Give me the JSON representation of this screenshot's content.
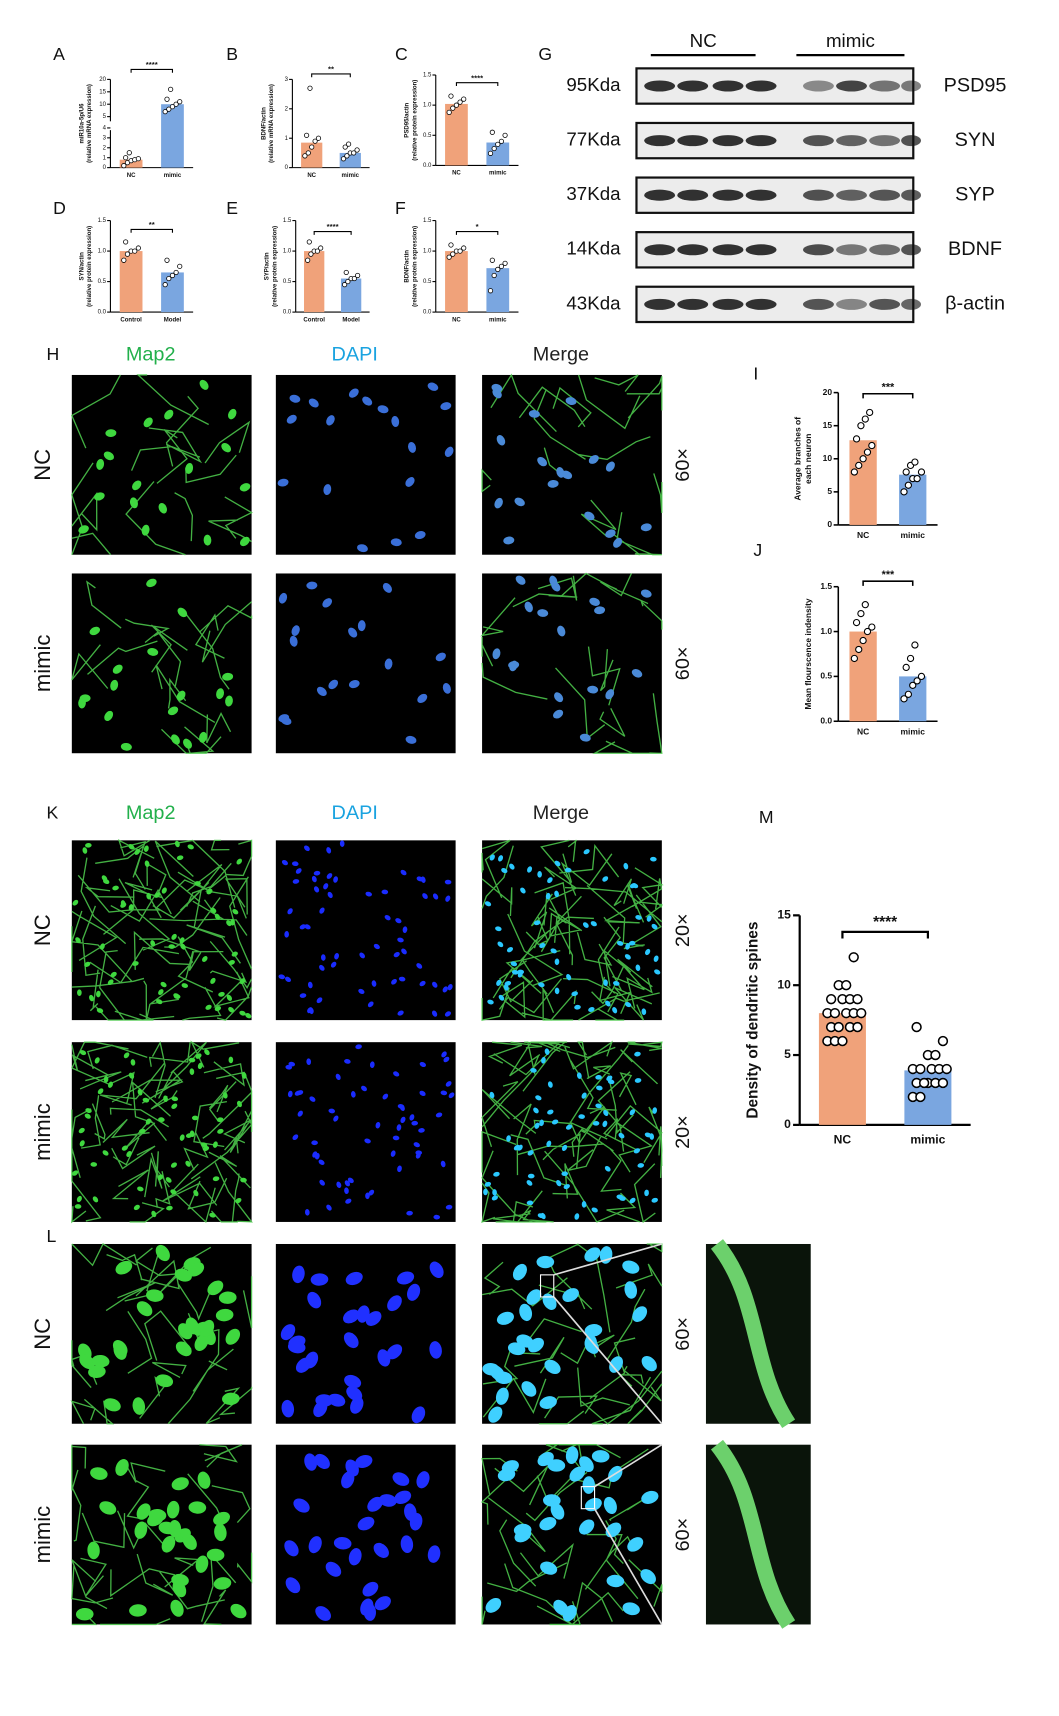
{
  "chart_data": [
    {
      "type": "bar",
      "panel": "A",
      "ylabel": [
        "miR10a-5p/U6",
        "(relative mRNA expression)"
      ],
      "categories": [
        "NC",
        "mimic"
      ],
      "values": [
        0.8,
        10
      ],
      "colors": [
        "#f0a27a",
        "#7aa6e0"
      ],
      "points": [
        [
          0.2,
          0.5,
          0.7,
          0.8,
          0.9,
          1.0,
          1.5
        ],
        [
          7,
          8,
          9,
          10,
          11,
          12,
          16
        ]
      ],
      "ylim": [
        0,
        20
      ],
      "ybreak": 4,
      "yticks": [
        0,
        1,
        2,
        3,
        4,
        5,
        10,
        15,
        20
      ],
      "significance": "****"
    },
    {
      "type": "bar",
      "panel": "B",
      "ylabel": [
        "BDNF/actin",
        "(relative mRNA expression)"
      ],
      "categories": [
        "NC",
        "mimic"
      ],
      "values": [
        0.85,
        0.5
      ],
      "colors": [
        "#f0a27a",
        "#7aa6e0"
      ],
      "points": [
        [
          0.4,
          0.5,
          0.7,
          0.9,
          1.0,
          1.1,
          2.7
        ],
        [
          0.3,
          0.4,
          0.5,
          0.5,
          0.6,
          0.7,
          0.8
        ]
      ],
      "ylim": [
        0,
        3
      ],
      "yticks": [
        0,
        1,
        2,
        3
      ],
      "significance": "**"
    },
    {
      "type": "bar",
      "panel": "C",
      "ylabel": [
        "PSD95/actin",
        "(relative protein expression)"
      ],
      "categories": [
        "NC",
        "mimic"
      ],
      "values": [
        1.02,
        0.38
      ],
      "colors": [
        "#f0a27a",
        "#7aa6e0"
      ],
      "points": [
        [
          0.88,
          0.95,
          1.0,
          1.05,
          1.1,
          1.15
        ],
        [
          0.2,
          0.28,
          0.35,
          0.4,
          0.5,
          0.55
        ]
      ],
      "ylim": [
        0,
        1.5
      ],
      "yticks": [
        {
          "value": 0,
          "label": "0.0"
        },
        0.5,
        {
          "value": 1,
          "label": "1.0"
        },
        1.5
      ],
      "significance": "****"
    },
    {
      "type": "bar",
      "panel": "D",
      "ylabel": [
        "SYN/actin",
        "(relative protein expression)"
      ],
      "categories": [
        "Control",
        "Model"
      ],
      "values": [
        1.0,
        0.65
      ],
      "colors": [
        "#f0a27a",
        "#7aa6e0"
      ],
      "points": [
        [
          0.85,
          0.95,
          1.0,
          1.0,
          1.05,
          1.15
        ],
        [
          0.45,
          0.55,
          0.6,
          0.65,
          0.75,
          0.85
        ]
      ],
      "ylim": [
        0,
        1.5
      ],
      "yticks": [
        {
          "value": 0,
          "label": "0.0"
        },
        0.5,
        {
          "value": 1,
          "label": "1.0"
        },
        1.5
      ],
      "significance": "**"
    },
    {
      "type": "bar",
      "panel": "E",
      "ylabel": [
        "SYP/actin",
        "(relative protein expression)"
      ],
      "categories": [
        "Control",
        "Model"
      ],
      "values": [
        1.0,
        0.55
      ],
      "colors": [
        "#f0a27a",
        "#7aa6e0"
      ],
      "points": [
        [
          0.85,
          0.95,
          1.0,
          1.0,
          1.05,
          1.15
        ],
        [
          0.45,
          0.5,
          0.55,
          0.55,
          0.6,
          0.65
        ]
      ],
      "ylim": [
        0,
        1.5
      ],
      "yticks": [
        {
          "value": 0,
          "label": "0.0"
        },
        0.5,
        {
          "value": 1,
          "label": "1.0"
        },
        1.5
      ],
      "significance": "****"
    },
    {
      "type": "bar",
      "panel": "F",
      "ylabel": [
        "BDNF/actin",
        "(relative protein expression)"
      ],
      "categories": [
        "NC",
        "mimic"
      ],
      "values": [
        1.0,
        0.72
      ],
      "colors": [
        "#f0a27a",
        "#7aa6e0"
      ],
      "points": [
        [
          0.9,
          0.95,
          1.0,
          1.0,
          1.05,
          1.1
        ],
        [
          0.35,
          0.6,
          0.7,
          0.75,
          0.8,
          0.85
        ]
      ],
      "ylim": [
        0,
        1.5
      ],
      "yticks": [
        {
          "value": 0,
          "label": "0.0"
        },
        0.5,
        {
          "value": 1,
          "label": "1.0"
        },
        1.5
      ],
      "significance": "*"
    },
    {
      "type": "bar",
      "panel": "I",
      "ylabel": [
        "Average branches of",
        "each neuron"
      ],
      "categories": [
        "NC",
        "mimic"
      ],
      "values": [
        12.8,
        7.6
      ],
      "colors": [
        "#f0a27a",
        "#7aa6e0"
      ],
      "points": [
        [
          8,
          9,
          10,
          11,
          12,
          13,
          15,
          16,
          17
        ],
        [
          5,
          6,
          7,
          7,
          8,
          8,
          9,
          9.5
        ]
      ],
      "ylim": [
        0,
        20
      ],
      "yticks": [
        0,
        5,
        10,
        15,
        20
      ],
      "significance": "***"
    },
    {
      "type": "bar",
      "panel": "J",
      "ylabel": [
        "Mean flourscence indensity"
      ],
      "categories": [
        "NC",
        "mimic"
      ],
      "values": [
        1.0,
        0.5
      ],
      "colors": [
        "#f0a27a",
        "#7aa6e0"
      ],
      "points": [
        [
          0.7,
          0.8,
          0.9,
          1.0,
          1.05,
          1.1,
          1.2,
          1.3
        ],
        [
          0.25,
          0.3,
          0.4,
          0.45,
          0.5,
          0.6,
          0.7,
          0.85
        ]
      ],
      "ylim": [
        0,
        1.5
      ],
      "yticks": [
        {
          "value": 0,
          "label": "0.0"
        },
        0.5,
        {
          "value": 1,
          "label": "1.0"
        },
        1.5
      ],
      "significance": "***"
    },
    {
      "type": "bar",
      "panel": "M",
      "ylabel": [
        "Density of dendritic spines"
      ],
      "categories": [
        "NC",
        "mimic"
      ],
      "values": [
        8.0,
        3.9
      ],
      "colors": [
        "#f0a27a",
        "#7aa6e0"
      ],
      "points": [
        [
          6,
          6,
          6,
          7,
          7,
          7,
          7,
          8,
          8,
          8,
          8,
          8,
          9,
          9,
          9,
          9,
          10,
          10,
          12
        ],
        [
          2,
          2,
          3,
          3,
          3,
          3,
          3,
          4,
          4,
          4,
          4,
          4,
          5,
          5,
          6,
          7
        ]
      ],
      "ylim": [
        0,
        15
      ],
      "yticks": [
        0,
        5,
        10,
        15
      ],
      "significance": "****"
    }
  ],
  "blot": {
    "panel": "G",
    "groups": [
      "NC",
      "mimic"
    ],
    "rows": [
      {
        "size": "95Kda",
        "protein": "PSD95"
      },
      {
        "size": "77Kda",
        "protein": "SYN"
      },
      {
        "size": "37Kda",
        "protein": "SYP"
      },
      {
        "size": "14Kda",
        "protein": "BDNF"
      },
      {
        "size": "43Kda",
        "protein": "β-actin"
      }
    ]
  },
  "imaging": [
    {
      "panel": "H",
      "columns": [
        "Map2",
        "DAPI",
        "Merge"
      ],
      "rows": [
        "NC",
        "mimic"
      ],
      "magnification": [
        "60×",
        "60×"
      ]
    },
    {
      "panel": "K",
      "columns": [
        "Map2",
        "DAPI",
        "Merge"
      ],
      "rows": [
        "NC",
        "mimic"
      ],
      "magnification": [
        "20×",
        "20×"
      ]
    },
    {
      "panel": "L",
      "rows": [
        "NC",
        "mimic"
      ],
      "magnification": [
        "60×",
        "60×"
      ]
    }
  ]
}
